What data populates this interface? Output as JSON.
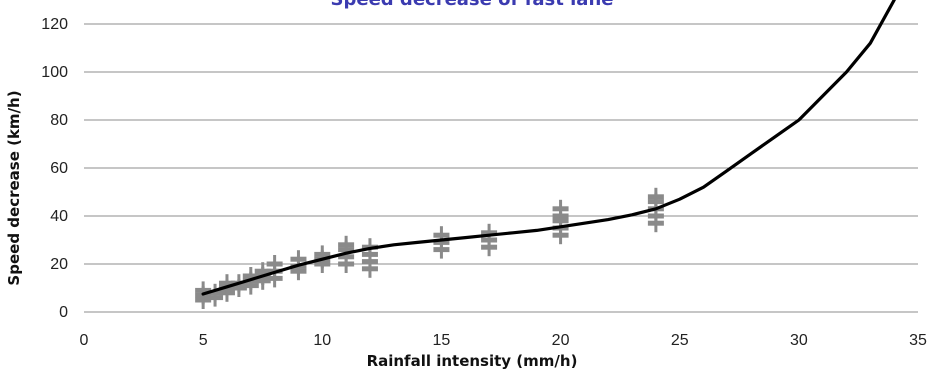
{
  "chart_data": {
    "type": "scatter",
    "title": "Speed decrease of fast lane",
    "xlabel": "Rainfall intensity (mm/h)",
    "ylabel": "Speed decrease (km/h)",
    "xlim": [
      0,
      35
    ],
    "ylim": [
      0,
      130
    ],
    "x_ticks": [
      0,
      5,
      10,
      15,
      20,
      25,
      30,
      35
    ],
    "y_ticks": [
      0,
      20,
      40,
      60,
      80,
      100,
      120
    ],
    "grid": "horizontal",
    "legend": "none",
    "colors": {
      "marker": "#8a8a8a",
      "trend": "#000000",
      "title": "#3b3bb0",
      "grid": "#8c8c8c"
    },
    "series": [
      {
        "type": "scatter",
        "marker": "cross",
        "points": [
          [
            5,
            5
          ],
          [
            5,
            7
          ],
          [
            5,
            9
          ],
          [
            5.5,
            6
          ],
          [
            5.5,
            8
          ],
          [
            6,
            8
          ],
          [
            6,
            10
          ],
          [
            6,
            12
          ],
          [
            6.5,
            10
          ],
          [
            6.5,
            12
          ],
          [
            7,
            11
          ],
          [
            7,
            13
          ],
          [
            7,
            15
          ],
          [
            7.5,
            13
          ],
          [
            7.5,
            15
          ],
          [
            7.5,
            17
          ],
          [
            8,
            14
          ],
          [
            8,
            17
          ],
          [
            8,
            20
          ],
          [
            9,
            17
          ],
          [
            9,
            19
          ],
          [
            9,
            22
          ],
          [
            10,
            20
          ],
          [
            10,
            22
          ],
          [
            10,
            24
          ],
          [
            11,
            20
          ],
          [
            11,
            23
          ],
          [
            11,
            26
          ],
          [
            11,
            28
          ],
          [
            12,
            18
          ],
          [
            12,
            21
          ],
          [
            12,
            24
          ],
          [
            12,
            27
          ],
          [
            15,
            26
          ],
          [
            15,
            29
          ],
          [
            15,
            32
          ],
          [
            17,
            27
          ],
          [
            17,
            30
          ],
          [
            17,
            33
          ],
          [
            20,
            32
          ],
          [
            20,
            35
          ],
          [
            20,
            38
          ],
          [
            20,
            40
          ],
          [
            20,
            43
          ],
          [
            24,
            37
          ],
          [
            24,
            40
          ],
          [
            24,
            43
          ],
          [
            24,
            46
          ],
          [
            24,
            48
          ]
        ]
      },
      {
        "type": "line",
        "points": [
          [
            5,
            7.5
          ],
          [
            6,
            10.5
          ],
          [
            7,
            13.5
          ],
          [
            8,
            16.5
          ],
          [
            9,
            19.5
          ],
          [
            10,
            22
          ],
          [
            11,
            24.5
          ],
          [
            12,
            26.5
          ],
          [
            13,
            28
          ],
          [
            14,
            29
          ],
          [
            15,
            30
          ],
          [
            16,
            31
          ],
          [
            17,
            32
          ],
          [
            18,
            33
          ],
          [
            19,
            34
          ],
          [
            20,
            35.5
          ],
          [
            21,
            37
          ],
          [
            22,
            38.5
          ],
          [
            23,
            40.5
          ],
          [
            24,
            43
          ],
          [
            25,
            47
          ],
          [
            26,
            52
          ],
          [
            27,
            59
          ],
          [
            28,
            66
          ],
          [
            29,
            73
          ],
          [
            30,
            80
          ],
          [
            31,
            90
          ],
          [
            32,
            100
          ],
          [
            33,
            112
          ],
          [
            34,
            130
          ]
        ]
      }
    ]
  }
}
